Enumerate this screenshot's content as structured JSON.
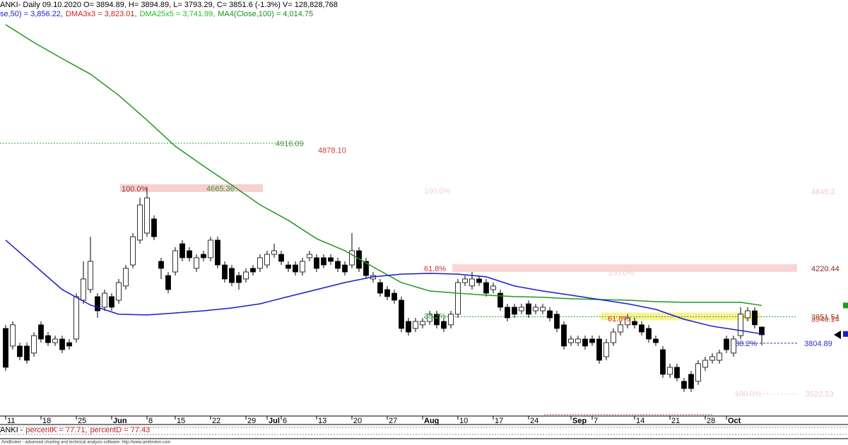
{
  "chart_data": {
    "type": "candlestick",
    "header": "ANKI- Daily 09.10.2020 O= 3894.89, H= 3894.89, L= 3793.29, C= 3851.6 (-1.3%) V= 128,828,768",
    "indicators": [
      {
        "text": "se,50) = 3,856.22,",
        "color": "#2020c8"
      },
      {
        "text": "DMA3x3 = 3,823.01,",
        "color": "#c82020"
      },
      {
        "text": "DMA25x5 = 3,741.99,",
        "color": "#20c020"
      },
      {
        "text": "MA4(Close,100) = 4,014.75",
        "color": "#208a20"
      }
    ],
    "categories": [
      "11",
      null,
      null,
      null,
      null,
      "18",
      null,
      null,
      null,
      null,
      "25",
      null,
      null,
      null,
      null,
      "Jun",
      null,
      null,
      null,
      null,
      "8",
      null,
      null,
      null,
      "15",
      null,
      null,
      null,
      null,
      "22",
      null,
      null,
      null,
      null,
      "29",
      null,
      null,
      "Jul",
      null,
      "6",
      null,
      null,
      null,
      null,
      "13",
      null,
      null,
      null,
      null,
      "20",
      null,
      null,
      null,
      null,
      "27",
      null,
      null,
      null,
      null,
      "Aug",
      null,
      null,
      null,
      null,
      "10",
      null,
      null,
      null,
      null,
      "17",
      null,
      null,
      null,
      null,
      "24",
      null,
      null,
      null,
      null,
      null,
      "Sep",
      null,
      null,
      "7",
      null,
      null,
      null,
      null,
      null,
      "14",
      null,
      null,
      null,
      null,
      "21",
      null,
      null,
      null,
      null,
      "28",
      null,
      null,
      "Oct",
      null,
      null,
      null,
      null,
      null
    ],
    "open": [
      3887,
      3789,
      3789,
      3789,
      3750,
      3907,
      3847,
      3808,
      3828,
      3808,
      3828,
      4044,
      4103,
      4064,
      4005,
      4064,
      4044,
      4123,
      4240,
      4378,
      4417,
      4496,
      4260,
      4181,
      4201,
      4358,
      4319,
      4221,
      4299,
      4280,
      4378,
      4240,
      4221,
      4181,
      4162,
      4221,
      4221,
      4240,
      4299,
      4299,
      4240,
      4240,
      4201,
      4280,
      4280,
      4280,
      4280,
      4260,
      4240,
      4240,
      4319,
      4260,
      4162,
      4142,
      4103,
      4083,
      4044,
      3926,
      3887,
      3907,
      3926,
      3966,
      3926,
      3907,
      3966,
      4142,
      4123,
      4162,
      4142,
      4103,
      4083,
      4005,
      4005,
      3985,
      4024,
      3985,
      3985,
      3985,
      3966,
      3907,
      3808,
      3808,
      3828,
      3828,
      3828,
      3730,
      3808,
      3867,
      3907,
      3926,
      3907,
      3887,
      3828,
      3769,
      3632,
      3671,
      3593,
      3632,
      3593,
      3671,
      3710,
      3710,
      3828,
      3750,
      3847,
      3946,
      3985,
      3894.89
    ],
    "high": [
      3907,
      3926,
      3808,
      3808,
      3867,
      3926,
      3867,
      3847,
      3847,
      3828,
      4083,
      4260,
      4397,
      4083,
      4103,
      4083,
      4162,
      4240,
      4417,
      4613,
      4672,
      4515,
      4280,
      4201,
      4339,
      4378,
      4339,
      4299,
      4319,
      4397,
      4397,
      4260,
      4240,
      4201,
      4221,
      4240,
      4299,
      4319,
      4358,
      4319,
      4260,
      4260,
      4280,
      4319,
      4299,
      4299,
      4299,
      4280,
      4260,
      4417,
      4339,
      4280,
      4201,
      4162,
      4123,
      4103,
      4064,
      3946,
      3946,
      3946,
      3985,
      3985,
      3946,
      3985,
      4162,
      4181,
      4201,
      4181,
      4162,
      4142,
      4103,
      4024,
      4024,
      4024,
      4044,
      4024,
      4024,
      4005,
      3985,
      3926,
      3847,
      3847,
      3847,
      3847,
      3847,
      3828,
      3887,
      3926,
      3966,
      3946,
      3926,
      3907,
      3847,
      3789,
      3691,
      3691,
      3612,
      3651,
      3710,
      3730,
      3750,
      3769,
      3847,
      3847,
      4005,
      4005,
      4005,
      3894.89
    ],
    "low": [
      3651,
      3769,
      3710,
      3691,
      3730,
      3808,
      3789,
      3789,
      3750,
      3769,
      3808,
      4024,
      4083,
      3946,
      3985,
      3985,
      4024,
      4103,
      4221,
      4358,
      4397,
      4378,
      4162,
      4083,
      4181,
      4260,
      4260,
      4201,
      4260,
      4260,
      4221,
      4142,
      4123,
      4103,
      4142,
      4181,
      4201,
      4221,
      4280,
      4240,
      4201,
      4181,
      4181,
      4260,
      4201,
      4221,
      4240,
      4201,
      4181,
      4221,
      4201,
      4162,
      4142,
      4064,
      4044,
      4024,
      3867,
      3847,
      3867,
      3887,
      3907,
      3887,
      3867,
      3887,
      3946,
      4123,
      4103,
      4123,
      4064,
      4083,
      3985,
      3926,
      3946,
      3966,
      3946,
      3966,
      3966,
      3926,
      3867,
      3769,
      3789,
      3789,
      3769,
      3789,
      3691,
      3710,
      3789,
      3847,
      3887,
      3887,
      3847,
      3808,
      3789,
      3612,
      3612,
      3593,
      3534,
      3534,
      3573,
      3651,
      3691,
      3691,
      3750,
      3730,
      3828,
      3926,
      3887,
      3793.29
    ],
    "close": [
      3671,
      3907,
      3730,
      3710,
      3847,
      3828,
      3808,
      3828,
      3769,
      3789,
      4064,
      4162,
      4260,
      3985,
      4083,
      4005,
      4142,
      4221,
      4397,
      4574,
      4613,
      4397,
      4221,
      4103,
      4319,
      4280,
      4280,
      4280,
      4280,
      4378,
      4240,
      4162,
      4142,
      4142,
      4201,
      4201,
      4280,
      4299,
      4319,
      4260,
      4221,
      4201,
      4260,
      4299,
      4221,
      4240,
      4260,
      4221,
      4201,
      4319,
      4221,
      4181,
      4181,
      4083,
      4064,
      4044,
      3887,
      3867,
      3926,
      3926,
      3966,
      3907,
      3887,
      3966,
      4142,
      4162,
      4162,
      4142,
      4083,
      4123,
      4005,
      3946,
      3966,
      4005,
      3966,
      4005,
      4005,
      3946,
      3887,
      3789,
      3828,
      3828,
      3789,
      3808,
      3710,
      3808,
      3867,
      3907,
      3946,
      3907,
      3867,
      3828,
      3808,
      3632,
      3671,
      3612,
      3553,
      3553,
      3691,
      3710,
      3730,
      3750,
      3769,
      3828,
      3966,
      3985,
      3907,
      3851.6
    ],
    "overlays": [
      {
        "color": "#1e9a1e",
        "x": [
          0,
          4,
          8,
          12,
          16,
          20,
          24,
          28,
          32,
          36,
          40,
          44,
          48,
          52,
          56,
          60,
          64,
          68,
          72,
          76,
          80,
          84,
          88,
          92,
          96,
          100,
          104,
          107
        ],
        "values": [
          5576,
          5477,
          5387,
          5301,
          5183,
          5045,
          4900,
          4790,
          4684,
          4574,
          4488,
          4386,
          4319,
          4229,
          4142,
          4095,
          4083,
          4072,
          4064,
          4060,
          4052,
          4048,
          4044,
          4036,
          4032,
          4032,
          4032,
          4014.75
        ]
      },
      {
        "color": "#1a1ad0",
        "x": [
          0,
          4,
          8,
          12,
          16,
          20,
          24,
          28,
          32,
          36,
          40,
          44,
          48,
          52,
          56,
          60,
          64,
          68,
          72,
          76,
          80,
          84,
          88,
          92,
          96,
          100,
          104,
          107
        ],
        "values": [
          4378,
          4240,
          4103,
          4017,
          3966,
          3962,
          3973,
          3985,
          4001,
          4024,
          4064,
          4103,
          4142,
          4174,
          4189,
          4193,
          4189,
          4174,
          4123,
          4095,
          4072,
          4048,
          4024,
          3993,
          3938,
          3899,
          3875,
          3856.22
        ]
      }
    ],
    "ylim": [
      3396,
      5713
    ],
    "levels": [
      {
        "value": 4916.09,
        "label": "4916.09",
        "color": "#3a9d3a"
      },
      {
        "value": 4878.1,
        "label": "4878.10",
        "color": "#d03a3a"
      },
      {
        "value": 4665.36,
        "label": "4665.36",
        "color": "#3a9d3a"
      },
      {
        "value": 4649.2,
        "label": "4649.2",
        "color": "#f2caca"
      },
      {
        "value": 4220.44,
        "label": "4220.44",
        "color": "#8a2a2a"
      },
      {
        "value": 3951.54,
        "label": "3951.54",
        "color": "#7a5a10"
      },
      {
        "value": 3940.14,
        "label": "3940.14",
        "color": "#c83030"
      },
      {
        "value": 3804.89,
        "label": "3804.89",
        "color": "#3030c8"
      },
      {
        "value": 3522.53,
        "label": "3522.53",
        "color": "#f2caca"
      }
    ],
    "fib_labels": [
      {
        "text": "100.0%",
        "color": "#a03030"
      },
      {
        "text": "100.0%",
        "color": "#f5d0d0"
      },
      {
        "text": "61.8%",
        "color": "#d03030"
      },
      {
        "text": "100.0%",
        "color": "#f5d0d0"
      },
      {
        "text": "38.2%",
        "color": "#3a9d3a"
      },
      {
        "text": "61.8%",
        "color": "#d03030"
      },
      {
        "text": "38.2%",
        "color": "#3030c8"
      },
      {
        "text": "100.0%",
        "color": "#f5d0d0"
      }
    ],
    "oscillator": [
      {
        "text": "ANKI -",
        "color": "#000000"
      },
      {
        "text": "percentK = 77.71,",
        "color": "#c82020"
      },
      {
        "text": "percentD = 77.43",
        "color": "#c82020"
      }
    ],
    "footer": "AmiBroker - advanced charting and technical analysis software. http://www.amibroker.com"
  }
}
